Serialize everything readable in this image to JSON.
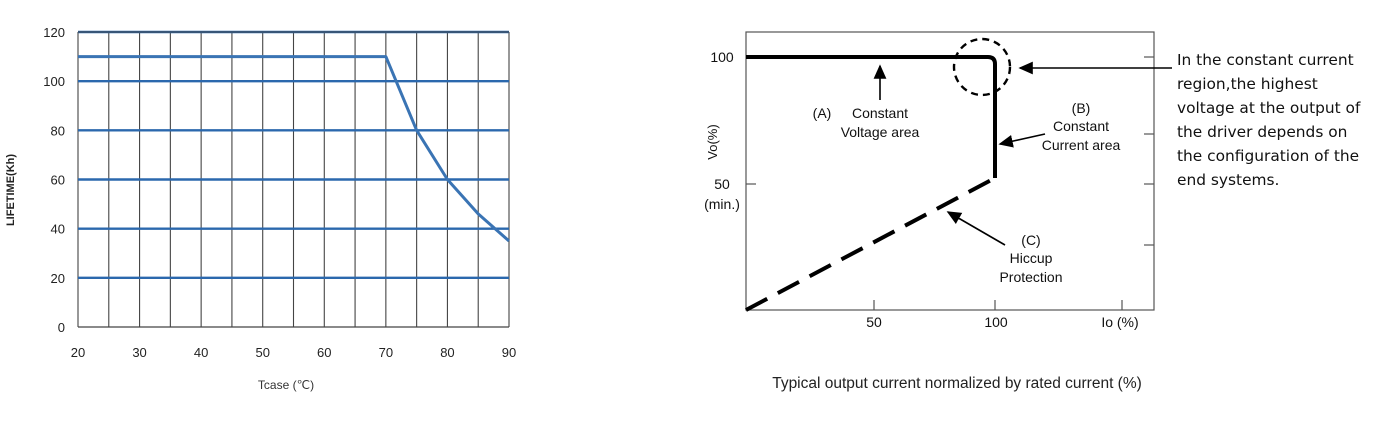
{
  "chart_data": [
    {
      "type": "line",
      "title": "",
      "xlabel": "Tcase (℃)",
      "ylabel": "LIFETIME(Kh)",
      "xlim": [
        20,
        90
      ],
      "ylim": [
        0,
        120
      ],
      "xticks": [
        20,
        30,
        40,
        50,
        60,
        70,
        80,
        90
      ],
      "yticks": [
        0,
        20,
        40,
        60,
        80,
        100,
        120
      ],
      "xtick_labels": [
        "20",
        "30",
        "40",
        "50",
        "60",
        "70",
        "80",
        "90"
      ],
      "ytick_labels": [
        "0",
        "20",
        "40",
        "60",
        "80",
        "100",
        "120"
      ],
      "grid": true,
      "line_color": "#3a74b4",
      "grid_color": "#2b68ad",
      "series": [
        {
          "x": [
            20,
            70,
            75,
            80,
            85,
            90
          ],
          "y": [
            110,
            110,
            80,
            60,
            46,
            35
          ]
        }
      ]
    },
    {
      "type": "line",
      "title": "",
      "xlabel": "Io (%)",
      "ylabel": "Vo(%)",
      "caption": "Typical output current normalized by rated current (%)",
      "xlim": [
        0,
        130
      ],
      "ylim": [
        0,
        105
      ],
      "xtick_labels": [
        "50",
        "100",
        "Io (%)"
      ],
      "ytick_labels": [
        "100",
        "50",
        "(min.)"
      ],
      "series": [
        {
          "style": "solid",
          "x": [
            0,
            97,
            100
          ],
          "y": [
            100,
            100,
            97
          ]
        },
        {
          "style": "solid",
          "x": [
            100,
            100
          ],
          "y": [
            97,
            52
          ]
        },
        {
          "style": "dashed",
          "x": [
            0,
            100
          ],
          "y": [
            0,
            52
          ]
        }
      ],
      "annotations": {
        "a_letter": "(A)",
        "a_line1": "Constant",
        "a_line2": "Voltage area",
        "b_letter": "(B)",
        "b_line1": "Constant",
        "b_line2": "Current area",
        "c_letter": "(C)",
        "c_line1": "Hiccup",
        "c_line2": "Protection"
      }
    }
  ],
  "side_note": {
    "lines": [
      "In the constant current",
      "region,the highest",
      "voltage at the output of",
      "the driver depends on",
      "the configuration of the",
      "end systems."
    ]
  }
}
